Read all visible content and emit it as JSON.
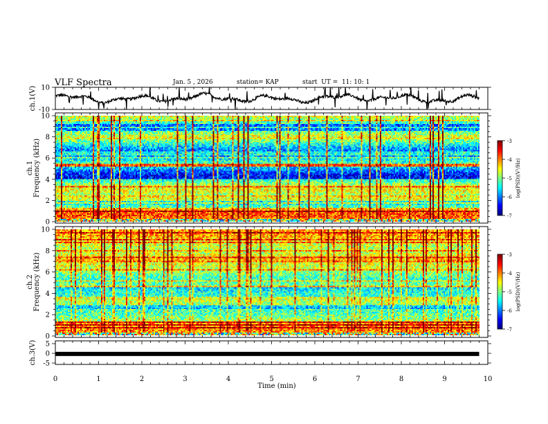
{
  "header": {
    "title": "VLF Spectra",
    "date": "Jan. 5 , 2026",
    "station": "station= KAP",
    "start_ut": "start  UT =  11: 10: 1"
  },
  "chart_data": [
    {
      "type": "line",
      "name": "ch1-waveform",
      "ylabel": "ch.1(V)",
      "ylim": [
        -10,
        10
      ],
      "y_tick_labels": [
        "10",
        "-10"
      ],
      "x_range_min": [
        0,
        10
      ],
      "note": "noisy waveform around 0 V, roughly -4 to +6 V with spikes",
      "duration_min": 9.8
    },
    {
      "type": "heatmap",
      "name": "ch1-spectrogram",
      "ylabel_line1": "ch.1",
      "ylabel_line2": "Frequency (kHz)",
      "ylim": [
        0,
        10
      ],
      "y_tick_labels": [
        "0",
        "2",
        "4",
        "6",
        "8",
        "10"
      ],
      "colorbar": {
        "label": "log(PSD)(V²/Hz)",
        "range": [
          -7,
          -3
        ],
        "tick_labels": [
          "-3",
          "-4",
          "-5",
          "-6",
          "-7"
        ]
      },
      "duration_min": 9.8
    },
    {
      "type": "heatmap",
      "name": "ch2-spectrogram",
      "ylabel_line1": "ch.2",
      "ylabel_line2": "Frequency (kHz)",
      "ylim": [
        0,
        10
      ],
      "y_tick_labels": [
        "0",
        "2",
        "4",
        "6",
        "8",
        "10"
      ],
      "colorbar": {
        "label": "log(PSD)(V²/Hz)",
        "range": [
          -7,
          -3
        ],
        "tick_labels": [
          "-3",
          "-4",
          "-5",
          "-6",
          "-7"
        ]
      },
      "duration_min": 9.8
    },
    {
      "type": "line",
      "name": "ch3-waveform",
      "ylabel": "ch.3(V)",
      "ylim": [
        -5,
        5
      ],
      "y_tick_labels": [
        "5",
        "0",
        "-5"
      ],
      "level_v": -0.3,
      "level_label": "constant thick band near 0 V",
      "duration_min": 9.8,
      "xlabel": "Time (min)",
      "xlim": [
        0,
        10
      ],
      "x_tick_labels": [
        "0",
        "1",
        "2",
        "3",
        "4",
        "5",
        "6",
        "7",
        "8",
        "9",
        "10"
      ]
    }
  ]
}
